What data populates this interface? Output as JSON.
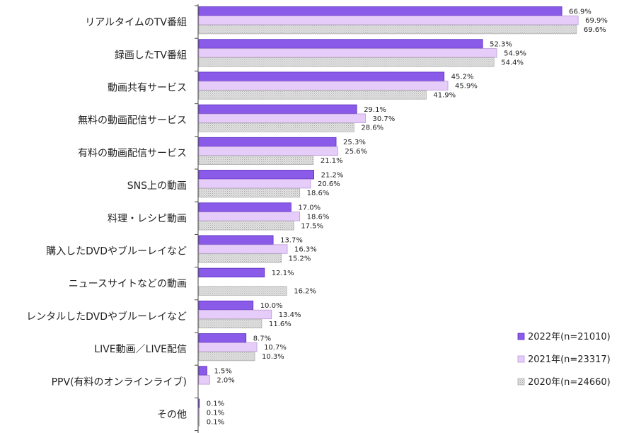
{
  "chart_data": {
    "type": "bar",
    "orientation": "horizontal",
    "categories": [
      "リアルタイムのTV番組",
      "録画したTV番組",
      "動画共有サービス",
      "無料の動画配信サービス",
      "有料の動画配信サービス",
      "SNS上の動画",
      "料理・レシピ動画",
      "購入したDVDやブルーレイなど",
      "ニュースサイトなどの動画",
      "レンタルしたDVDやブルーレイなど",
      "LIVE動画／LIVE配信",
      "PPV(有料のオンラインライブ)",
      "その他"
    ],
    "series": [
      {
        "name": "2022年(n=21010)",
        "color": "#8a5ae8",
        "values": [
          66.9,
          52.3,
          45.2,
          29.1,
          25.3,
          21.2,
          17.0,
          13.7,
          12.1,
          10.0,
          8.7,
          1.5,
          0.1
        ],
        "labels": [
          "66.9%",
          "52.3%",
          "45.2%",
          "29.1%",
          "25.3%",
          "21.2%",
          "17.0%",
          "13.7%",
          "12.1%",
          "10.0%",
          "8.7%",
          "1.5%",
          "0.1%"
        ]
      },
      {
        "name": "2021年(n=23317)",
        "color": "#e6ccf8",
        "values": [
          69.9,
          54.9,
          45.9,
          30.7,
          25.6,
          20.6,
          18.6,
          16.3,
          0,
          13.4,
          10.7,
          2.0,
          0.1
        ],
        "labels": [
          "69.9%",
          "54.9%",
          "45.9%",
          "30.7%",
          "25.6%",
          "20.6%",
          "18.6%",
          "16.3%",
          "",
          "13.4%",
          "10.7%",
          "2.0%",
          "0.1%"
        ]
      },
      {
        "name": "2020年(n=24660)",
        "color": "#cfcfcf",
        "pattern": "dotted",
        "values": [
          69.6,
          54.4,
          41.9,
          28.6,
          21.1,
          18.6,
          17.5,
          15.2,
          16.2,
          11.6,
          10.3,
          0,
          0.1
        ],
        "labels": [
          "69.6%",
          "54.4%",
          "41.9%",
          "28.6%",
          "21.1%",
          "18.6%",
          "17.5%",
          "15.2%",
          "16.2%",
          "11.6%",
          "10.3%",
          "",
          "0.1%"
        ]
      }
    ],
    "xlim": [
      0,
      100
    ],
    "grid": false,
    "legend_position": "bottom-right",
    "title": "",
    "xlabel": "",
    "ylabel": ""
  }
}
